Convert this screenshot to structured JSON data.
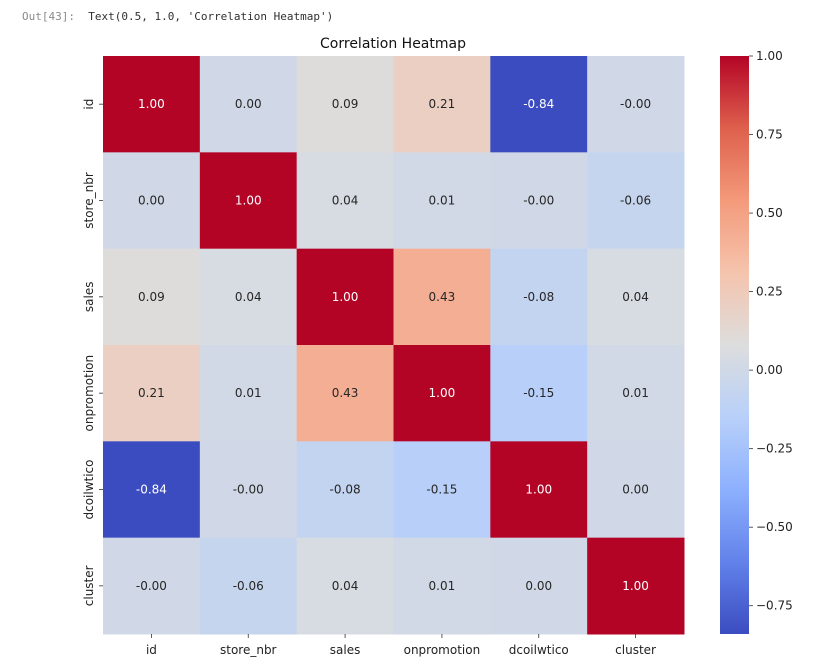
{
  "cell_output": {
    "prompt": "Out[43]:",
    "text": "Text(0.5, 1.0, 'Correlation Heatmap')"
  },
  "chart_data": {
    "type": "heatmap",
    "title": "Correlation Heatmap",
    "colormap": "coolwarm",
    "x_categories": [
      "id",
      "store_nbr",
      "sales",
      "onpromotion",
      "dcoilwtico",
      "cluster"
    ],
    "y_categories": [
      "id",
      "store_nbr",
      "sales",
      "onpromotion",
      "dcoilwtico",
      "cluster"
    ],
    "values": [
      [
        1.0,
        0.0,
        0.09,
        0.21,
        -0.84,
        -0.0
      ],
      [
        0.0,
        1.0,
        0.04,
        0.01,
        -0.0,
        -0.06
      ],
      [
        0.09,
        0.04,
        1.0,
        0.43,
        -0.08,
        0.04
      ],
      [
        0.21,
        0.01,
        0.43,
        1.0,
        -0.15,
        0.01
      ],
      [
        -0.84,
        -0.0,
        -0.08,
        -0.15,
        1.0,
        0.0
      ],
      [
        -0.0,
        -0.06,
        0.04,
        0.01,
        0.0,
        1.0
      ]
    ],
    "value_labels": [
      [
        "1.00",
        "0.00",
        "0.09",
        "0.21",
        "-0.84",
        "-0.00"
      ],
      [
        "0.00",
        "1.00",
        "0.04",
        "0.01",
        "-0.00",
        "-0.06"
      ],
      [
        "0.09",
        "0.04",
        "1.00",
        "0.43",
        "-0.08",
        "0.04"
      ],
      [
        "0.21",
        "0.01",
        "0.43",
        "1.00",
        "-0.15",
        "0.01"
      ],
      [
        "-0.84",
        "-0.00",
        "-0.08",
        "-0.15",
        "1.00",
        "0.00"
      ],
      [
        "-0.00",
        "-0.06",
        "0.04",
        "0.01",
        "0.00",
        "1.00"
      ]
    ],
    "colorbar": {
      "range": [
        -0.84,
        1.0
      ],
      "ticks": [
        1.0,
        0.75,
        0.5,
        0.25,
        0.0,
        -0.25,
        -0.5,
        -0.75
      ],
      "tick_labels": [
        "1.00",
        "0.75",
        "0.50",
        "0.25",
        "0.00",
        "−0.25",
        "−0.50",
        "−0.75"
      ]
    },
    "xlabel": "",
    "ylabel": "",
    "grid": false
  }
}
